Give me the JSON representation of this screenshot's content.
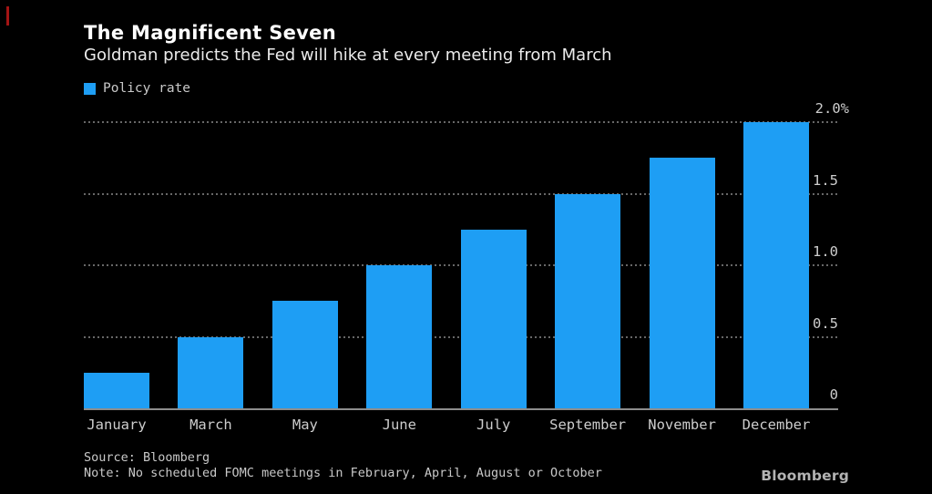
{
  "colors": {
    "background": "#000000",
    "bar_blue": "#1E9EF4",
    "accent_red": "#a31414",
    "axis_gray": "#8d8d8d"
  },
  "header": {
    "title": "The Magnificent Seven",
    "subtitle": "Goldman predicts the Fed will hike at every meeting from March"
  },
  "legend": {
    "label": "Policy rate",
    "swatch_color": "#1E9EF4"
  },
  "chart_data": {
    "type": "bar",
    "title": "The Magnificent Seven",
    "subtitle": "Goldman predicts the Fed will hike at every meeting from March",
    "series_name": "Policy rate",
    "categories": [
      "January",
      "March",
      "May",
      "June",
      "July",
      "September",
      "November",
      "December"
    ],
    "values": [
      0.25,
      0.5,
      0.75,
      1.0,
      1.25,
      1.5,
      1.75,
      2.0
    ],
    "unit": "%",
    "xlabel": "",
    "ylabel": "",
    "ylim": [
      0,
      2.0
    ],
    "y_ticks": [
      {
        "label": "2.0%",
        "value": 2.0
      },
      {
        "label": "1.5",
        "value": 1.5
      },
      {
        "label": "1.0",
        "value": 1.0
      },
      {
        "label": "0.5",
        "value": 0.5
      },
      {
        "label": "0",
        "value": 0
      }
    ],
    "grid": "dotted-horizontal",
    "legend_position": "top-left",
    "bar_color": "#1E9EF4"
  },
  "footer": {
    "source": "Source: Bloomberg",
    "note": "Note: No scheduled FOMC meetings in February, April, August or October",
    "brand": "Bloomberg"
  }
}
